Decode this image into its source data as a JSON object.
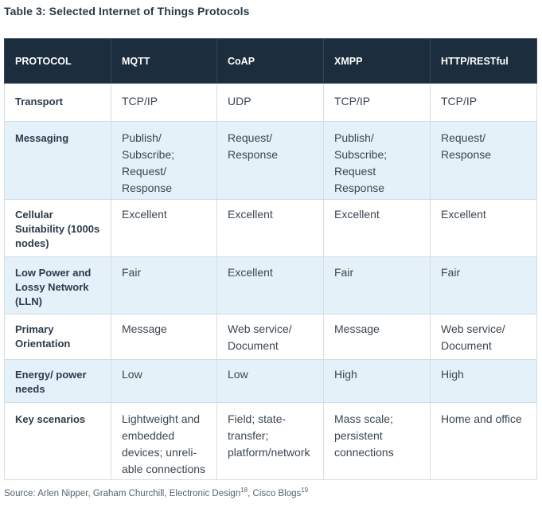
{
  "caption": "Table 3: Selected Internet of Things Protocols",
  "table": {
    "headers": [
      "PROTOCOL",
      "MQTT",
      "CoAP",
      "XMPP",
      "HTTP/RESTful"
    ],
    "rows": [
      {
        "label": "Transport",
        "cells": [
          "TCP/IP",
          "UDP",
          "TCP/IP",
          "TCP/IP"
        ]
      },
      {
        "label": "Messaging",
        "cells": [
          "Publish/ Subscribe; Request/ Response",
          "Request/ Response",
          "Publish/ Subscribe; Request Response",
          "Request/ Response"
        ]
      },
      {
        "label": "Cellular Suitability (1000s nodes)",
        "cells": [
          "Excellent",
          "Excellent",
          "Excellent",
          "Excellent"
        ]
      },
      {
        "label": "Low Power and Lossy Network (LLN)",
        "cells": [
          "Fair",
          "Excellent",
          "Fair",
          "Fair"
        ]
      },
      {
        "label": "Primary Orientation",
        "cells": [
          "Message",
          "Web service/ Document",
          "Message",
          "Web service/ Document"
        ]
      },
      {
        "label": "Energy/ power needs",
        "cells": [
          "Low",
          "Low",
          "High",
          "High"
        ]
      },
      {
        "label": "Key scenarios",
        "cells": [
          "Lightweight and embedded devices; unreli-able connections",
          "Field; state-transfer; platform/network",
          "Mass scale; persistent connections",
          "Home and office"
        ]
      }
    ]
  },
  "source": {
    "prefix": "Source: Arlen Nipper, Graham Churchill, Electronic Design",
    "ref1": "18",
    "middle": ", Cisco Blogs",
    "ref2": "19"
  }
}
